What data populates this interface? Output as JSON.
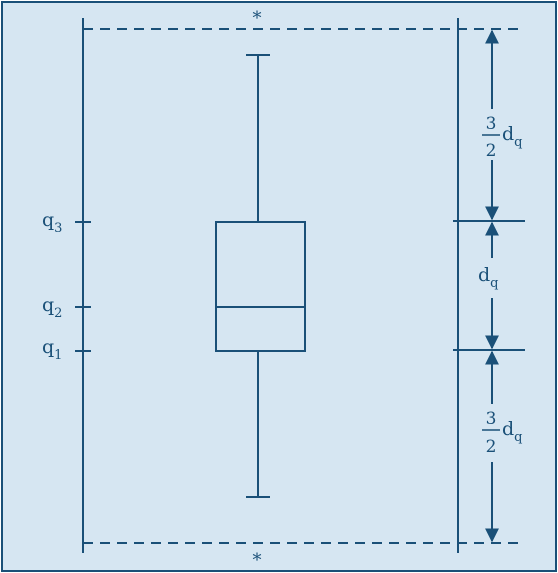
{
  "colors": {
    "background": "#d6e6f2",
    "ink": "#1a5078",
    "border": "#1a5078"
  },
  "labels": {
    "q3": {
      "base": "q",
      "sub": "3"
    },
    "q2": {
      "base": "q",
      "sub": "2"
    },
    "q1": {
      "base": "q",
      "sub": "1"
    },
    "top_star": "*",
    "bottom_star": "*"
  },
  "dimensions": {
    "upper": {
      "num": "3",
      "den": "2",
      "base": "d",
      "sub": "q"
    },
    "middle": {
      "base": "d",
      "sub": "q"
    },
    "lower": {
      "num": "3",
      "den": "2",
      "base": "d",
      "sub": "q"
    }
  }
}
